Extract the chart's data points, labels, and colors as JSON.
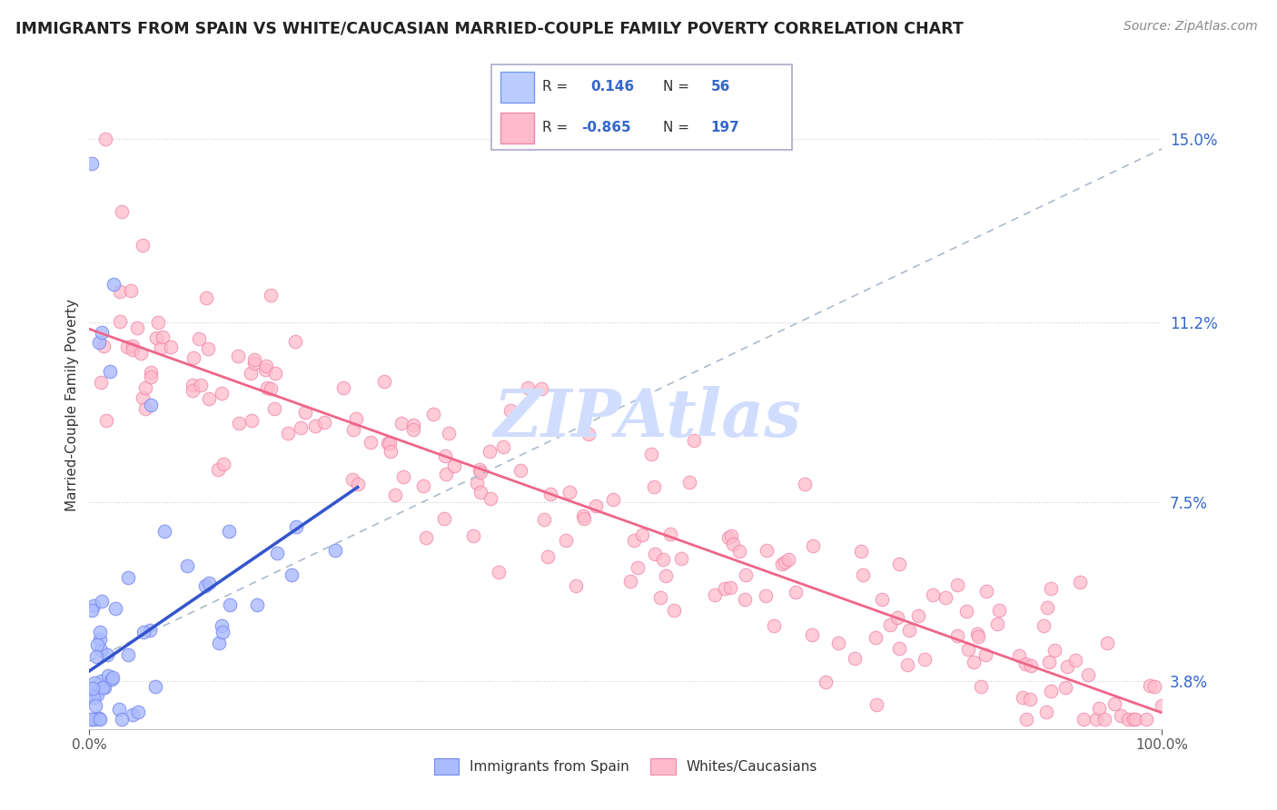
{
  "title": "IMMIGRANTS FROM SPAIN VS WHITE/CAUCASIAN MARRIED-COUPLE FAMILY POVERTY CORRELATION CHART",
  "source": "Source: ZipAtlas.com",
  "ylabel": "Married-Couple Family Poverty",
  "yticks": [
    3.8,
    7.5,
    11.2,
    15.0
  ],
  "ytick_labels": [
    "3.8%",
    "7.5%",
    "11.2%",
    "15.0%"
  ],
  "xmin": 0.0,
  "xmax": 100.0,
  "ymin": 2.8,
  "ymax": 16.2,
  "blue_R": 0.146,
  "blue_N": 56,
  "pink_R": -0.865,
  "pink_N": 197,
  "blue_dot_color": "#AABBFF",
  "blue_dot_edge": "#7788EE",
  "pink_dot_color": "#FFBBCC",
  "pink_dot_edge": "#EE88AA",
  "trend_blue_solid_color": "#3355CC",
  "trend_gray_dashed_color": "#AABBCC",
  "trend_pink_color": "#EE6688",
  "watermark_text": "ZIPAtlas",
  "watermark_color": "#D0DDFF",
  "legend_R_color": "#3366CC",
  "legend_box_blue_fill": "#BBCCFF",
  "legend_box_blue_edge": "#7799EE",
  "legend_box_pink_fill": "#FFBBCC",
  "legend_box_pink_edge": "#EE88AA",
  "legend_border_color": "#AAAACC"
}
